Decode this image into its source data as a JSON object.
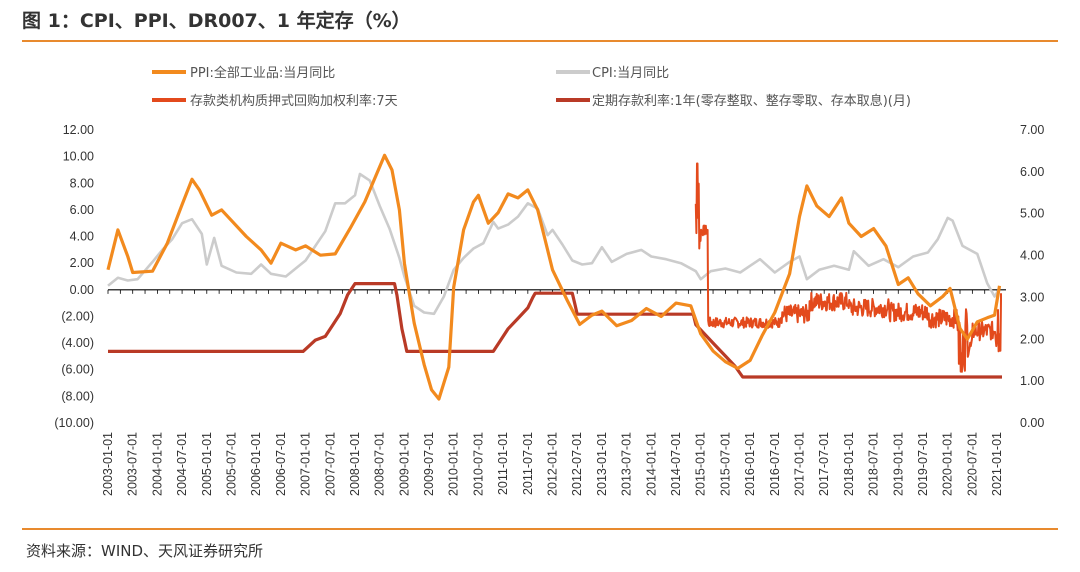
{
  "title": "图 1：CPI、PPI、DR007、1 年定存（%）",
  "source": "资料来源：WIND、天风证券研究所",
  "colors": {
    "ppi": "#f28a1e",
    "cpi": "#cccccc",
    "dr007": "#e34a1c",
    "deposit": "#b93a26",
    "accent": "#e88a2e",
    "negative": "#e0302a"
  },
  "chart_data": {
    "type": "line",
    "left_ylim": [
      -10,
      12
    ],
    "right_ylim": [
      0,
      7
    ],
    "left_ticks": [
      "12.00",
      "10.00",
      "8.00",
      "6.00",
      "4.00",
      "2.00",
      "0.00",
      "(2.00)",
      "(4.00)",
      "(6.00)",
      "(8.00)",
      "(10.00)"
    ],
    "right_ticks": [
      "7.00",
      "6.00",
      "5.00",
      "4.00",
      "3.00",
      "2.00",
      "1.00",
      "0.00"
    ],
    "x_labels": [
      "2003-01-01",
      "2003-07-01",
      "2004-01-01",
      "2004-07-01",
      "2005-01-01",
      "2005-07-01",
      "2006-01-01",
      "2006-07-01",
      "2007-01-01",
      "2007-07-01",
      "2008-01-01",
      "2008-07-01",
      "2009-01-01",
      "2009-07-01",
      "2010-01-01",
      "2010-07-01",
      "2011-01-01",
      "2011-07-01",
      "2012-01-01",
      "2012-07-01",
      "2013-01-01",
      "2013-07-01",
      "2014-01-01",
      "2014-07-01",
      "2015-01-01",
      "2015-07-01",
      "2016-01-01",
      "2016-07-01",
      "2017-01-01",
      "2017-07-01",
      "2018-01-01",
      "2018-07-01",
      "2019-01-01",
      "2019-07-01",
      "2020-01-01",
      "2020-07-01",
      "2021-01-01"
    ],
    "legend_position": "top",
    "series": [
      {
        "name": "PPI:全部工业品:当月同比",
        "axis": "left",
        "key": "ppi",
        "points": [
          [
            2003.0,
            1.5
          ],
          [
            2003.2,
            4.5
          ],
          [
            2003.4,
            2.5
          ],
          [
            2003.5,
            1.3
          ],
          [
            2003.9,
            1.4
          ],
          [
            2004.2,
            3.5
          ],
          [
            2004.5,
            6.4
          ],
          [
            2004.7,
            8.3
          ],
          [
            2004.85,
            7.5
          ],
          [
            2005.1,
            5.6
          ],
          [
            2005.3,
            6.0
          ],
          [
            2005.5,
            5.2
          ],
          [
            2005.8,
            4.0
          ],
          [
            2006.1,
            3.0
          ],
          [
            2006.3,
            2.0
          ],
          [
            2006.5,
            3.5
          ],
          [
            2006.8,
            3.0
          ],
          [
            2007.0,
            3.3
          ],
          [
            2007.3,
            2.6
          ],
          [
            2007.6,
            2.7
          ],
          [
            2007.9,
            4.6
          ],
          [
            2008.2,
            6.6
          ],
          [
            2008.45,
            8.8
          ],
          [
            2008.6,
            10.1
          ],
          [
            2008.75,
            9.0
          ],
          [
            2008.9,
            6.0
          ],
          [
            2009.0,
            2.0
          ],
          [
            2009.2,
            -2.5
          ],
          [
            2009.4,
            -5.6
          ],
          [
            2009.55,
            -7.5
          ],
          [
            2009.7,
            -8.2
          ],
          [
            2009.9,
            -5.8
          ],
          [
            2010.0,
            0.2
          ],
          [
            2010.2,
            4.5
          ],
          [
            2010.4,
            6.6
          ],
          [
            2010.5,
            7.1
          ],
          [
            2010.7,
            5.0
          ],
          [
            2010.9,
            5.8
          ],
          [
            2011.1,
            7.2
          ],
          [
            2011.3,
            6.9
          ],
          [
            2011.5,
            7.5
          ],
          [
            2011.7,
            6.0
          ],
          [
            2011.9,
            3.0
          ],
          [
            2012.0,
            1.5
          ],
          [
            2012.3,
            -0.8
          ],
          [
            2012.55,
            -2.6
          ],
          [
            2012.8,
            -1.9
          ],
          [
            2013.0,
            -1.6
          ],
          [
            2013.3,
            -2.7
          ],
          [
            2013.6,
            -2.3
          ],
          [
            2013.9,
            -1.4
          ],
          [
            2014.2,
            -2.0
          ],
          [
            2014.5,
            -1.0
          ],
          [
            2014.8,
            -1.2
          ],
          [
            2015.0,
            -3.3
          ],
          [
            2015.25,
            -4.6
          ],
          [
            2015.5,
            -5.4
          ],
          [
            2015.75,
            -5.9
          ],
          [
            2016.0,
            -5.3
          ],
          [
            2016.25,
            -3.4
          ],
          [
            2016.5,
            -1.7
          ],
          [
            2016.8,
            1.2
          ],
          [
            2017.0,
            5.5
          ],
          [
            2017.15,
            7.8
          ],
          [
            2017.35,
            6.3
          ],
          [
            2017.6,
            5.5
          ],
          [
            2017.85,
            6.9
          ],
          [
            2018.0,
            5.0
          ],
          [
            2018.25,
            4.0
          ],
          [
            2018.5,
            4.6
          ],
          [
            2018.75,
            3.3
          ],
          [
            2019.0,
            0.4
          ],
          [
            2019.2,
            0.9
          ],
          [
            2019.4,
            -0.3
          ],
          [
            2019.65,
            -1.2
          ],
          [
            2019.9,
            -0.5
          ],
          [
            2020.05,
            0.1
          ],
          [
            2020.25,
            -2.9
          ],
          [
            2020.4,
            -3.7
          ],
          [
            2020.6,
            -2.4
          ],
          [
            2020.8,
            -2.1
          ],
          [
            2020.95,
            -1.9
          ],
          [
            2021.05,
            0.3
          ]
        ]
      },
      {
        "name": "CPI:当月同比",
        "axis": "left",
        "key": "cpi",
        "points": [
          [
            2003.0,
            0.3
          ],
          [
            2003.2,
            0.9
          ],
          [
            2003.4,
            0.7
          ],
          [
            2003.6,
            0.8
          ],
          [
            2003.9,
            2.1
          ],
          [
            2004.1,
            3.0
          ],
          [
            2004.3,
            3.8
          ],
          [
            2004.5,
            5.0
          ],
          [
            2004.7,
            5.3
          ],
          [
            2004.9,
            4.2
          ],
          [
            2005.0,
            1.9
          ],
          [
            2005.15,
            3.9
          ],
          [
            2005.3,
            1.8
          ],
          [
            2005.6,
            1.3
          ],
          [
            2005.9,
            1.2
          ],
          [
            2006.1,
            1.9
          ],
          [
            2006.3,
            1.2
          ],
          [
            2006.6,
            1.0
          ],
          [
            2006.9,
            1.9
          ],
          [
            2007.0,
            2.2
          ],
          [
            2007.2,
            3.3
          ],
          [
            2007.4,
            4.4
          ],
          [
            2007.6,
            6.5
          ],
          [
            2007.8,
            6.5
          ],
          [
            2008.0,
            7.1
          ],
          [
            2008.1,
            8.7
          ],
          [
            2008.3,
            8.2
          ],
          [
            2008.5,
            6.3
          ],
          [
            2008.7,
            4.6
          ],
          [
            2008.9,
            2.4
          ],
          [
            2009.0,
            1.0
          ],
          [
            2009.2,
            -1.2
          ],
          [
            2009.4,
            -1.7
          ],
          [
            2009.6,
            -1.8
          ],
          [
            2009.8,
            -0.5
          ],
          [
            2010.0,
            1.5
          ],
          [
            2010.2,
            2.4
          ],
          [
            2010.4,
            3.1
          ],
          [
            2010.6,
            3.5
          ],
          [
            2010.8,
            5.1
          ],
          [
            2010.9,
            4.6
          ],
          [
            2011.1,
            4.9
          ],
          [
            2011.3,
            5.5
          ],
          [
            2011.5,
            6.5
          ],
          [
            2011.7,
            6.1
          ],
          [
            2011.9,
            4.1
          ],
          [
            2012.0,
            4.5
          ],
          [
            2012.2,
            3.4
          ],
          [
            2012.4,
            2.2
          ],
          [
            2012.6,
            1.9
          ],
          [
            2012.8,
            2.0
          ],
          [
            2013.0,
            3.2
          ],
          [
            2013.2,
            2.1
          ],
          [
            2013.5,
            2.7
          ],
          [
            2013.8,
            3.0
          ],
          [
            2014.0,
            2.5
          ],
          [
            2014.3,
            2.3
          ],
          [
            2014.6,
            2.0
          ],
          [
            2014.9,
            1.4
          ],
          [
            2015.0,
            0.8
          ],
          [
            2015.2,
            1.4
          ],
          [
            2015.5,
            1.6
          ],
          [
            2015.8,
            1.3
          ],
          [
            2016.0,
            1.8
          ],
          [
            2016.2,
            2.3
          ],
          [
            2016.5,
            1.3
          ],
          [
            2016.8,
            2.1
          ],
          [
            2017.0,
            2.5
          ],
          [
            2017.15,
            0.8
          ],
          [
            2017.4,
            1.5
          ],
          [
            2017.7,
            1.8
          ],
          [
            2018.0,
            1.5
          ],
          [
            2018.1,
            2.9
          ],
          [
            2018.4,
            1.8
          ],
          [
            2018.7,
            2.3
          ],
          [
            2019.0,
            1.7
          ],
          [
            2019.3,
            2.5
          ],
          [
            2019.6,
            2.8
          ],
          [
            2019.8,
            3.8
          ],
          [
            2020.0,
            5.4
          ],
          [
            2020.1,
            5.2
          ],
          [
            2020.3,
            3.3
          ],
          [
            2020.6,
            2.7
          ],
          [
            2020.8,
            0.5
          ],
          [
            2020.95,
            -0.5
          ],
          [
            2021.05,
            0.1
          ]
        ]
      },
      {
        "name": "存款类机构质押式回购加权利率:7天",
        "axis": "right",
        "key": "dr007"
      },
      {
        "name": "定期存款利率:1年(零存整取、整存零取、存本取息)(月)",
        "axis": "right",
        "key": "deposit",
        "points": [
          [
            2003.0,
            1.71
          ],
          [
            2006.95,
            1.71
          ],
          [
            2007.2,
            1.98
          ],
          [
            2007.4,
            2.07
          ],
          [
            2007.55,
            2.34
          ],
          [
            2007.7,
            2.61
          ],
          [
            2007.85,
            3.06
          ],
          [
            2008.0,
            3.33
          ],
          [
            2008.8,
            3.33
          ],
          [
            2008.85,
            3.06
          ],
          [
            2008.95,
            2.25
          ],
          [
            2009.0,
            1.98
          ],
          [
            2009.05,
            1.71
          ],
          [
            2010.8,
            1.71
          ],
          [
            2010.95,
            1.98
          ],
          [
            2011.1,
            2.25
          ],
          [
            2011.3,
            2.5
          ],
          [
            2011.5,
            2.75
          ],
          [
            2011.6,
            3.0
          ],
          [
            2011.65,
            3.1
          ],
          [
            2012.4,
            3.1
          ],
          [
            2012.45,
            2.85
          ],
          [
            2012.5,
            2.6
          ],
          [
            2014.85,
            2.6
          ],
          [
            2014.9,
            2.35
          ],
          [
            2015.1,
            2.1
          ],
          [
            2015.3,
            1.85
          ],
          [
            2015.5,
            1.6
          ],
          [
            2015.7,
            1.35
          ],
          [
            2015.85,
            1.1
          ],
          [
            2021.1,
            1.1
          ]
        ]
      }
    ]
  }
}
